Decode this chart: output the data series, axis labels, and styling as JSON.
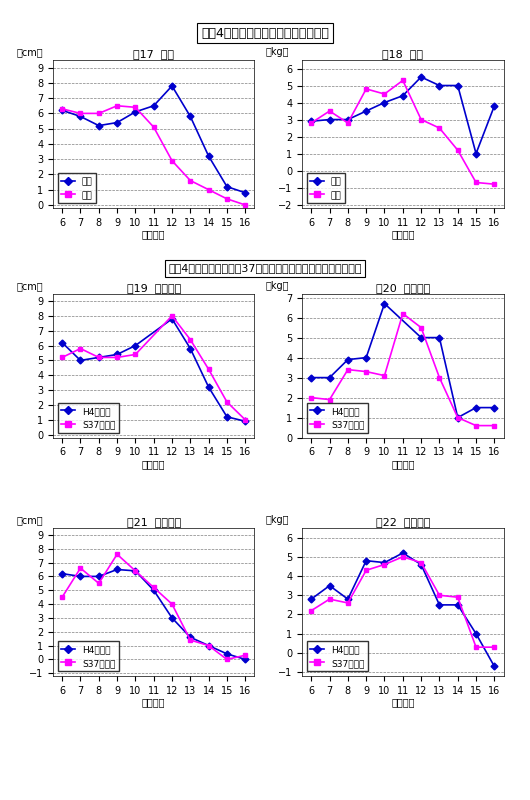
{
  "title1": "平成4年度生まれの年間発育量の推移",
  "title2": "平成4年度生まれと昭和37年度生まれの者の年間発育量の比較",
  "x_all": [
    6,
    7,
    8,
    9,
    10,
    11,
    12,
    13,
    14,
    15,
    16
  ],
  "fig17_title": "図17  身長",
  "fig17_yunit": "（cm）",
  "fig17_xlabel": "（歳時）",
  "fig17_ylim": [
    -0.2,
    9.5
  ],
  "fig17_yticks": [
    0,
    1,
    2,
    3,
    4,
    5,
    6,
    7,
    8,
    9
  ],
  "fig17_boy": [
    6.2,
    5.8,
    5.2,
    5.4,
    6.1,
    6.5,
    7.8,
    5.8,
    3.2,
    1.2,
    0.8
  ],
  "fig17_girl": [
    6.3,
    6.0,
    6.0,
    6.5,
    6.4,
    5.1,
    2.9,
    1.6,
    1.0,
    0.4,
    0.0
  ],
  "fig18_title": "図18  体重",
  "fig18_yunit": "（kg）",
  "fig18_xlabel": "（歳時）",
  "fig18_ylim": [
    -2.2,
    6.5
  ],
  "fig18_yticks": [
    -2,
    -1,
    0,
    1,
    2,
    3,
    4,
    5,
    6
  ],
  "fig18_boy": [
    2.9,
    3.0,
    3.0,
    3.5,
    4.0,
    4.4,
    5.5,
    5.0,
    5.0,
    1.0,
    3.8
  ],
  "fig18_girl": [
    2.8,
    3.5,
    2.8,
    4.8,
    4.5,
    5.3,
    3.0,
    2.5,
    1.2,
    -0.7,
    -0.8
  ],
  "fig19_title": "図19  男子身長",
  "fig19_yunit": "（cm）",
  "fig19_xlabel": "（歳時）",
  "fig19_ylim": [
    -0.2,
    9.5
  ],
  "fig19_yticks": [
    0,
    1,
    2,
    3,
    4,
    5,
    6,
    7,
    8,
    9
  ],
  "fig19_x_h4": [
    6,
    7,
    8,
    9,
    10,
    12,
    13,
    14,
    15,
    16
  ],
  "fig19_h4": [
    6.2,
    5.0,
    5.2,
    5.4,
    6.0,
    7.8,
    5.8,
    3.2,
    1.2,
    0.9
  ],
  "fig19_x_s37": [
    6,
    7,
    8,
    9,
    10,
    12,
    13,
    14,
    15,
    16
  ],
  "fig19_s37": [
    5.2,
    5.8,
    5.2,
    5.2,
    5.4,
    8.0,
    6.4,
    4.4,
    2.2,
    1.0
  ],
  "fig20_title": "図20  男子体重",
  "fig20_yunit": "（kg）",
  "fig20_xlabel": "（歳時）",
  "fig20_ylim": [
    0.0,
    7.2
  ],
  "fig20_yticks": [
    0,
    1,
    2,
    3,
    4,
    5,
    6,
    7
  ],
  "fig20_x_h4": [
    6,
    7,
    8,
    9,
    10,
    12,
    13,
    14,
    15,
    16
  ],
  "fig20_h4": [
    3.0,
    3.0,
    3.9,
    4.0,
    6.7,
    5.0,
    5.0,
    1.0,
    1.5,
    1.5
  ],
  "fig20_x_s37": [
    6,
    7,
    8,
    9,
    10,
    11,
    12,
    13,
    14,
    15,
    16
  ],
  "fig20_s37": [
    2.0,
    1.9,
    3.4,
    3.3,
    3.1,
    6.2,
    5.5,
    3.0,
    1.0,
    0.6,
    0.6
  ],
  "fig21_title": "図21  女子身長",
  "fig21_yunit": "（cm）",
  "fig21_xlabel": "（歳時）",
  "fig21_ylim": [
    -1.2,
    9.5
  ],
  "fig21_yticks": [
    -1,
    0,
    1,
    2,
    3,
    4,
    5,
    6,
    7,
    8,
    9
  ],
  "fig21_h4": [
    6.2,
    6.0,
    6.0,
    6.5,
    6.4,
    5.0,
    3.0,
    1.6,
    1.0,
    0.4,
    0.0
  ],
  "fig21_s37": [
    4.5,
    6.6,
    5.5,
    7.6,
    6.4,
    5.2,
    4.0,
    1.4,
    1.0,
    0.0,
    0.3
  ],
  "fig22_title": "図22  女子体重",
  "fig22_yunit": "（kg）",
  "fig22_xlabel": "（歳時）",
  "fig22_ylim": [
    -1.2,
    6.5
  ],
  "fig22_yticks": [
    -1,
    0,
    1,
    2,
    3,
    4,
    5,
    6
  ],
  "fig22_h4": [
    2.8,
    3.5,
    2.8,
    4.8,
    4.7,
    5.2,
    4.6,
    2.5,
    2.5,
    1.0,
    -0.7
  ],
  "fig22_s37": [
    2.2,
    2.8,
    2.6,
    4.3,
    4.6,
    5.0,
    4.7,
    3.0,
    2.9,
    0.3,
    0.3
  ],
  "color_boy": "#0000cd",
  "color_girl": "#ff00ff",
  "color_h4": "#0000cd",
  "color_s37": "#ff00ff",
  "legend_boy": "男子",
  "legend_girl": "女子",
  "legend_h4": "H4年度生",
  "legend_s37": "S37年度生"
}
